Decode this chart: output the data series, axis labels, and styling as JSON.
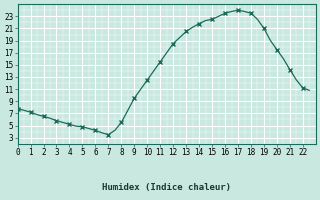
{
  "xlabel": "Humidex (Indice chaleur)",
  "ylabel": "",
  "background_color": "#c8e8e0",
  "line_color": "#1a6b5a",
  "marker_color": "#1a6b5a",
  "grid_color_major": "#ffffff",
  "grid_color_minor": "#e0f0ec",
  "xlim": [
    0,
    23
  ],
  "ylim": [
    2,
    25
  ],
  "yticks": [
    3,
    5,
    7,
    9,
    11,
    13,
    15,
    17,
    19,
    21,
    23
  ],
  "xticks": [
    0,
    1,
    2,
    3,
    4,
    5,
    6,
    7,
    8,
    9,
    10,
    11,
    12,
    13,
    14,
    15,
    16,
    17,
    18,
    19,
    20,
    21,
    22
  ],
  "x": [
    0,
    0.5,
    1,
    1.5,
    2,
    2.5,
    3,
    3.5,
    4,
    4.5,
    5,
    5.5,
    6,
    6.5,
    7,
    7.5,
    8,
    8.5,
    9,
    9.5,
    10,
    10.5,
    11,
    11.5,
    12,
    12.5,
    13,
    13.5,
    14,
    14.5,
    15,
    15.5,
    16,
    16.5,
    17,
    17.5,
    18,
    18.5,
    19,
    19.5,
    20,
    20.5,
    21,
    21.5,
    22,
    22.5
  ],
  "y": [
    7.8,
    7.5,
    7.2,
    6.8,
    6.5,
    6.2,
    5.8,
    5.5,
    5.2,
    4.9,
    4.8,
    4.5,
    4.2,
    3.8,
    3.5,
    4.2,
    5.5,
    7.5,
    9.5,
    11.0,
    12.5,
    14.0,
    15.5,
    17.0,
    18.5,
    19.5,
    20.5,
    21.2,
    21.8,
    22.3,
    22.5,
    23.0,
    23.5,
    23.8,
    24.0,
    23.8,
    23.5,
    22.5,
    21.0,
    19.0,
    17.5,
    16.0,
    14.2,
    12.5,
    11.2,
    10.8
  ]
}
